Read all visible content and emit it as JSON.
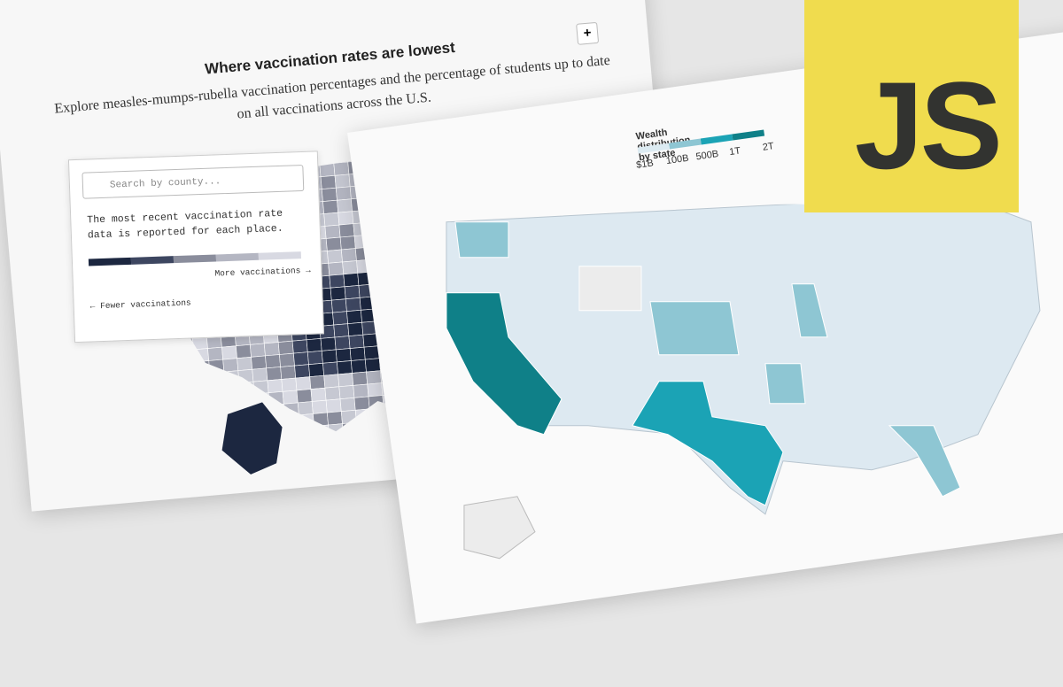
{
  "vaccination_card": {
    "title": "Where vaccination rates are lowest",
    "subtitle": "Explore measles-mumps-rubella vaccination percentages and the percentage of students up to date on all vaccinations across the U.S.",
    "zoom_button": "+",
    "search_placeholder": "Search by county...",
    "note": "The most recent vaccination rate data is reported for each place.",
    "legend": {
      "low": "← Fewer vaccinations",
      "high": "More vaccinations →"
    }
  },
  "wealth_card": {
    "legend_title": "Wealth distribution by state",
    "legend_ticks": [
      "$1B",
      "100B",
      "500B",
      "1T",
      "2T"
    ]
  },
  "logo": {
    "text": "JS"
  }
}
